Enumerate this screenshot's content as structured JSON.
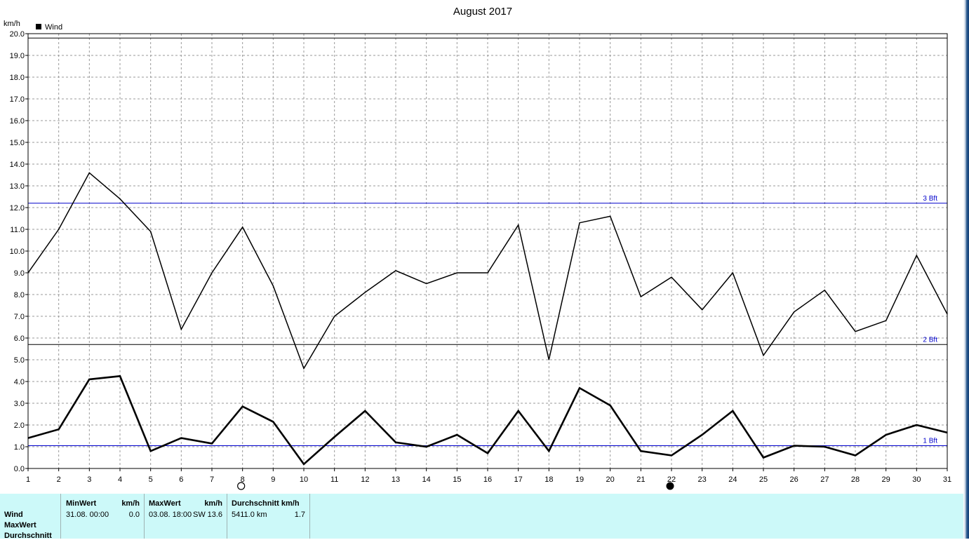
{
  "chart_data": {
    "type": "line",
    "title": "August 2017",
    "ylabel": "km/h",
    "legend": {
      "label": "Wind",
      "placement": "top-left",
      "color": "#000000"
    },
    "x": [
      1,
      2,
      3,
      4,
      5,
      6,
      7,
      8,
      9,
      10,
      11,
      12,
      13,
      14,
      15,
      16,
      17,
      18,
      19,
      20,
      21,
      22,
      23,
      24,
      25,
      26,
      27,
      28,
      29,
      30,
      31
    ],
    "xlim": [
      1,
      31
    ],
    "ylim": [
      0,
      20
    ],
    "yticks": [
      "0.0",
      "1.0",
      "2.0",
      "3.0",
      "4.0",
      "5.0",
      "6.0",
      "7.0",
      "8.0",
      "9.0",
      "10.0",
      "11.0",
      "12.0",
      "13.0",
      "14.0",
      "15.0",
      "16.0",
      "17.0",
      "18.0",
      "19.0",
      "20.0"
    ],
    "grid": true,
    "series": [
      {
        "style": "thin",
        "color": "#000000",
        "values": [
          9.0,
          11.0,
          13.6,
          12.4,
          10.9,
          6.4,
          9.0,
          11.1,
          8.4,
          4.6,
          7.0,
          8.1,
          9.1,
          8.5,
          9.0,
          9.0,
          11.2,
          5.0,
          11.3,
          11.6,
          7.9,
          8.8,
          7.3,
          9.0,
          5.2,
          7.2,
          8.2,
          6.3,
          6.8,
          9.8,
          7.1
        ]
      },
      {
        "style": "thick",
        "color": "#000000",
        "values": [
          1.4,
          1.8,
          4.1,
          4.25,
          0.8,
          1.4,
          1.15,
          2.85,
          2.15,
          0.2,
          1.45,
          2.65,
          1.2,
          1.0,
          1.55,
          0.7,
          2.65,
          0.8,
          3.7,
          2.9,
          0.8,
          0.6,
          1.55,
          2.65,
          0.5,
          1.05,
          1.0,
          0.6,
          1.55,
          2.0,
          1.65
        ]
      }
    ],
    "reference_lines": [
      {
        "value": 19.8,
        "color": "#000000",
        "label": ""
      },
      {
        "value": 12.2,
        "color": "#0000cc",
        "label": "3 Bft"
      },
      {
        "value": 5.7,
        "color": "#000000",
        "label": "2 Bft"
      },
      {
        "value": 1.05,
        "color": "#0000cc",
        "label": "1 Bft"
      }
    ],
    "moon_phases": [
      {
        "day": 8,
        "phase": "full-moon-icon"
      },
      {
        "day": 22,
        "phase": "new-moon-icon"
      }
    ]
  },
  "stats": {
    "row_labels": [
      "Wind",
      "MaxWert",
      "Durchschnitt"
    ],
    "min": {
      "header": "MinWert",
      "unit": "km/h",
      "when": "31.08.  00:00",
      "value": "0.0"
    },
    "max": {
      "header": "MaxWert",
      "unit": "km/h",
      "when": "03.08.  18:00",
      "dir": "SW",
      "value": "13.6"
    },
    "avg": {
      "header": "Durchschnitt km/h",
      "distance": "5411.0 km",
      "value": "1.7"
    }
  }
}
